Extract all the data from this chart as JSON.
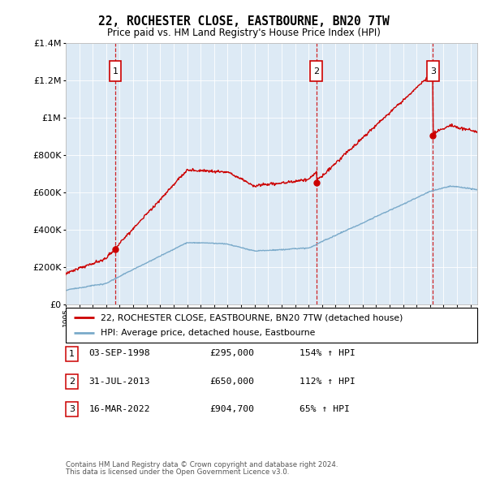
{
  "title": "22, ROCHESTER CLOSE, EASTBOURNE, BN20 7TW",
  "subtitle": "Price paid vs. HM Land Registry's House Price Index (HPI)",
  "legend_property": "22, ROCHESTER CLOSE, EASTBOURNE, BN20 7TW (detached house)",
  "legend_hpi": "HPI: Average price, detached house, Eastbourne",
  "footer1": "Contains HM Land Registry data © Crown copyright and database right 2024.",
  "footer2": "This data is licensed under the Open Government Licence v3.0.",
  "sales": [
    {
      "num": 1,
      "date": "03-SEP-1998",
      "price": "£295,000",
      "hpi": "154% ↑ HPI",
      "year": 1998.67
    },
    {
      "num": 2,
      "date": "31-JUL-2013",
      "price": "£650,000",
      "hpi": "112% ↑ HPI",
      "year": 2013.58
    },
    {
      "num": 3,
      "date": "16-MAR-2022",
      "price": "£904,700",
      "hpi": "65% ↑ HPI",
      "year": 2022.21
    }
  ],
  "sale_values": [
    295000,
    650000,
    904700
  ],
  "property_color": "#cc0000",
  "hpi_color": "#7aaaca",
  "background_color": "#ddeaf5",
  "ylim": [
    0,
    1400000
  ],
  "xlim_start": 1995.0,
  "xlim_end": 2025.5
}
